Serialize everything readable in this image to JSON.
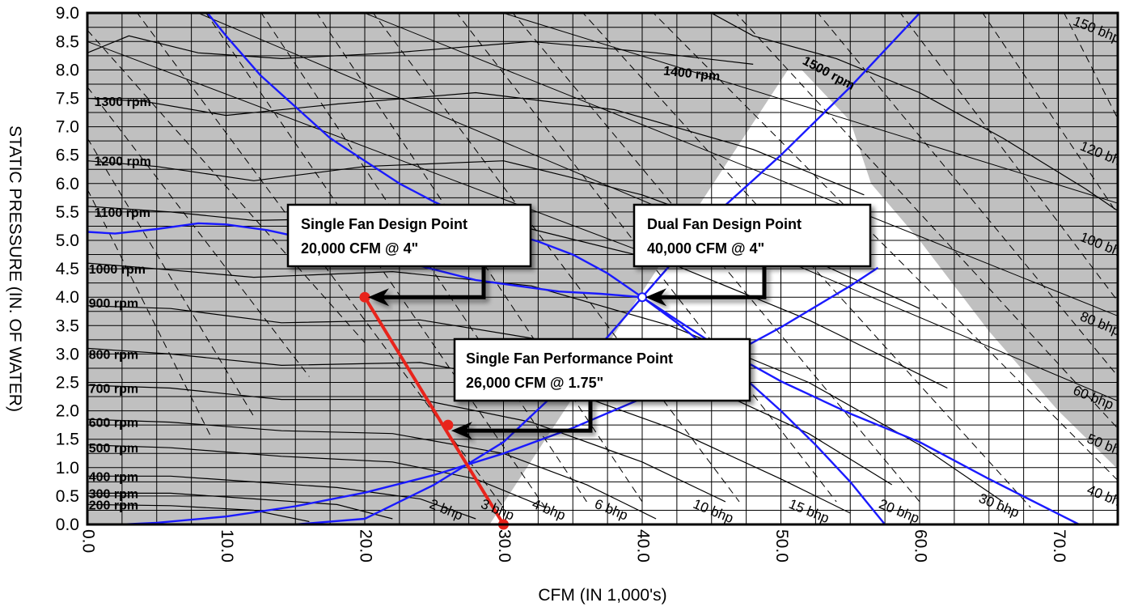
{
  "chart_data": {
    "type": "line",
    "title": "",
    "xlabel": "CFM (IN 1,000's)",
    "ylabel": "STATIC PRESSURE (IN. OF WATER)",
    "xlim": [
      0,
      75
    ],
    "ylim": [
      0,
      9
    ],
    "grid": true,
    "x_ticks": [
      "0.0",
      "10.0",
      "20.0",
      "30.0",
      "40.0",
      "50.0",
      "60.0",
      "70.0"
    ],
    "y_ticks": [
      "0.0",
      "0.5",
      "1.0",
      "1.5",
      "2.0",
      "2.5",
      "3.0",
      "3.5",
      "4.0",
      "4.5",
      "5.0",
      "5.5",
      "6.0",
      "6.5",
      "7.0",
      "7.5",
      "8.0",
      "8.5",
      "9.0"
    ],
    "colors": {
      "system_curve": "#1a1aff",
      "performance_line": "#e8241c",
      "unusable_region": "#c0c0c0",
      "fan_curve": "#000000"
    },
    "rpm_labels": [
      {
        "text": "1300 rpm",
        "x": 0.5,
        "y": 7.45
      },
      {
        "text": "1200 rpm",
        "x": 0.5,
        "y": 6.4
      },
      {
        "text": "1100 rpm",
        "x": 0.5,
        "y": 5.5
      },
      {
        "text": "1000 rpm",
        "x": 0.1,
        "y": 4.5
      },
      {
        "text": "900 rpm",
        "x": 0.1,
        "y": 3.9
      },
      {
        "text": "800 rpm",
        "x": 0.1,
        "y": 3.0
      },
      {
        "text": "700 rpm",
        "x": 0.1,
        "y": 2.4
      },
      {
        "text": "600 rpm",
        "x": 0.1,
        "y": 1.8
      },
      {
        "text": "500 rpm",
        "x": 0.1,
        "y": 1.35
      },
      {
        "text": "400 rpm",
        "x": 0.1,
        "y": 0.85
      },
      {
        "text": "300 rpm",
        "x": 0.1,
        "y": 0.55
      },
      {
        "text": "200 rpm",
        "x": 0.1,
        "y": 0.35
      },
      {
        "text": "1400 rpm",
        "x": 41.5,
        "y": 8.0
      },
      {
        "text": "1500 rpm",
        "x": 51.5,
        "y": 8.2
      }
    ],
    "bhp_labels": [
      {
        "text": "2 bhp",
        "x": 24.6,
        "y": 0.3
      },
      {
        "text": "3 bhp",
        "x": 28.3,
        "y": 0.3
      },
      {
        "text": "4 bhp",
        "x": 32.0,
        "y": 0.3
      },
      {
        "text": "6 bhp",
        "x": 36.5,
        "y": 0.3
      },
      {
        "text": "10 bhp",
        "x": 43.6,
        "y": 0.3
      },
      {
        "text": "15 bhp",
        "x": 50.5,
        "y": 0.3
      },
      {
        "text": "20 bhp",
        "x": 57.0,
        "y": 0.3
      },
      {
        "text": "30 bhp",
        "x": 64.2,
        "y": 0.4
      },
      {
        "text": "40 bhp",
        "x": 72.0,
        "y": 0.55
      },
      {
        "text": "50 bhp",
        "x": 72.0,
        "y": 1.45
      },
      {
        "text": "60 bhp",
        "x": 71.0,
        "y": 2.3
      },
      {
        "text": "80 bhp",
        "x": 71.5,
        "y": 3.6
      },
      {
        "text": "100 bhp",
        "x": 71.5,
        "y": 5.0
      },
      {
        "text": "120 bhp",
        "x": 71.5,
        "y": 6.6
      },
      {
        "text": "150 bhp",
        "x": 71.0,
        "y": 8.8
      }
    ],
    "series": [
      {
        "x": [
          2.5,
          5,
          10,
          15,
          20,
          25,
          30,
          35,
          40,
          45,
          50,
          55,
          57
        ],
        "y": [
          0,
          0.03,
          0.14,
          0.32,
          0.56,
          0.87,
          1.25,
          1.7,
          2.22,
          2.81,
          3.47,
          4.2,
          4.52
        ]
      },
      {
        "x": [
          8,
          10,
          12.5,
          15,
          17.5,
          20,
          22.5,
          25,
          27.5,
          30,
          32.5,
          35,
          37.5,
          40,
          42.5,
          45,
          47.5,
          50,
          52.5,
          55,
          57.5
        ],
        "y": [
          9.2,
          8.6,
          7.9,
          7.35,
          6.8,
          6.4,
          6.0,
          5.68,
          5.4,
          5.16,
          4.98,
          4.75,
          4.42,
          4.0,
          3.55,
          3.05,
          2.55,
          2.0,
          1.4,
          0.75,
          0.0
        ]
      },
      {
        "x": [
          0,
          2,
          5,
          8,
          10,
          13,
          16,
          20,
          24,
          28,
          31,
          34,
          37,
          40
        ],
        "y": [
          5.15,
          5.12,
          5.2,
          5.3,
          5.28,
          5.18,
          5.02,
          4.8,
          4.55,
          4.3,
          4.2,
          4.1,
          4.06,
          4.0
        ]
      },
      {
        "x": [
          40,
          45,
          50,
          55,
          60,
          65,
          71.5
        ],
        "y": [
          4.0,
          3.2,
          2.52,
          1.95,
          1.45,
          0.8,
          0.0
        ]
      },
      {
        "x": [
          15,
          20,
          25,
          30,
          35,
          40,
          45,
          50,
          55,
          60
        ],
        "y": [
          0,
          0.1,
          0.7,
          1.45,
          2.6,
          4.0,
          5.4,
          6.5,
          7.7,
          9.0
        ]
      },
      {
        "x": [
          20,
          30
        ],
        "y": [
          4.0,
          0.0
        ]
      }
    ],
    "points": [
      {
        "x": 20,
        "y": 4.0
      },
      {
        "x": 26,
        "y": 1.75
      },
      {
        "x": 30,
        "y": 0.0
      },
      {
        "x": 40,
        "y": 4.0
      }
    ],
    "annotations": [
      {
        "line1": "Single Fan Design Point",
        "line2": "20,000 CFM  @  4\"",
        "target": [
          20,
          4.0
        ]
      },
      {
        "line1": "Dual Fan Design Point",
        "line2": "40,000 CFM  @  4\"",
        "target": [
          40,
          4.0
        ]
      },
      {
        "line1": "Single Fan Performance Point",
        "line2": "26,000 CFM  @  1.75\"",
        "target": [
          26,
          1.65
        ]
      }
    ]
  }
}
